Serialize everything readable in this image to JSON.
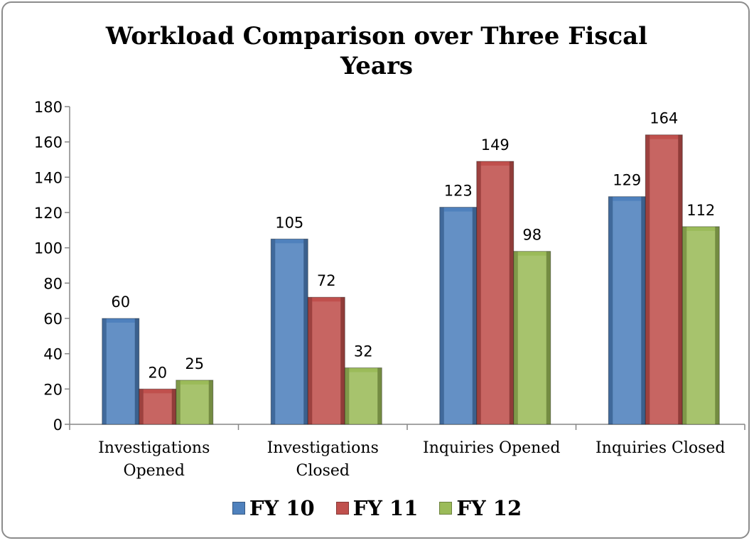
{
  "chart_data": {
    "type": "bar",
    "title": "Workload Comparison over Three Fiscal Years",
    "categories": [
      "Investigations Opened",
      "Investigations Closed",
      "Inquiries Opened",
      "Inquiries Closed"
    ],
    "series": [
      {
        "name": "FY 10",
        "color": "#4f81bd",
        "values": [
          60,
          105,
          123,
          129
        ]
      },
      {
        "name": "FY 11",
        "color": "#c0504d",
        "values": [
          20,
          72,
          149,
          164
        ]
      },
      {
        "name": "FY 12",
        "color": "#9bbb59",
        "values": [
          25,
          32,
          98,
          112
        ]
      }
    ],
    "ylim": [
      0,
      180
    ],
    "yticks": [
      0,
      20,
      40,
      60,
      80,
      100,
      120,
      140,
      160,
      180
    ],
    "grid": false,
    "legend": "bottom"
  }
}
